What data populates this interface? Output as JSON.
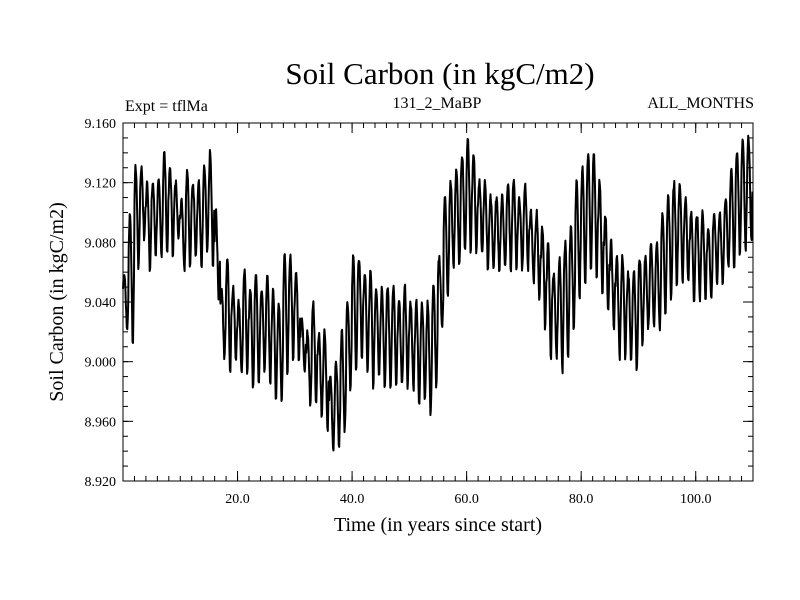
{
  "chart_data": {
    "type": "line",
    "title": "Soil Carbon (in kgC/m2)",
    "subtitle_left": "Expt = tflMa",
    "subtitle_center": "131_2_MaBP",
    "subtitle_right": "ALL_MONTHS",
    "xlabel": "Time (in years since start)",
    "ylabel": "Soil Carbon (in kgC/m2)",
    "xlim": [
      0,
      110
    ],
    "ylim": [
      8.92,
      9.16
    ],
    "x_ticks": [
      20,
      40,
      60,
      80,
      100
    ],
    "x_tick_labels": [
      "20.0",
      "40.0",
      "60.0",
      "80.0",
      "100.0"
    ],
    "y_ticks": [
      8.92,
      8.96,
      9.0,
      9.04,
      9.08,
      9.12,
      9.16
    ],
    "y_tick_labels": [
      "8.920",
      "8.960",
      "9.000",
      "9.040",
      "9.080",
      "9.120",
      "9.160"
    ],
    "x_minor_step": 2,
    "y_minor_step": 0.01,
    "samples_per_year": 12,
    "annual_upper": [
      9.06,
      9.1,
      9.13,
      9.13,
      9.12,
      9.12,
      9.12,
      9.14,
      9.13,
      9.12,
      9.11,
      9.13,
      9.12,
      9.12,
      9.13,
      9.14,
      9.1,
      9.05,
      9.07,
      9.05,
      9.04,
      9.06,
      9.05,
      9.06,
      9.05,
      9.06,
      9.05,
      9.04,
      9.07,
      9.07,
      9.06,
      9.03,
      9.02,
      9.04,
      9.02,
      9.02,
      8.99,
      9.0,
      9.02,
      9.04,
      9.07,
      9.07,
      9.06,
      9.06,
      9.05,
      9.05,
      9.05,
      9.05,
      9.04,
      9.05,
      9.04,
      9.04,
      9.04,
      9.04,
      9.05,
      9.07,
      9.11,
      9.12,
      9.13,
      9.14,
      9.15,
      9.14,
      9.12,
      9.12,
      9.11,
      9.11,
      9.11,
      9.12,
      9.12,
      9.11,
      9.12,
      9.1,
      9.1,
      9.09,
      9.08,
      9.06,
      9.07,
      9.08,
      9.09,
      9.12,
      9.13,
      9.14,
      9.14,
      9.12,
      9.1,
      9.08,
      9.07,
      9.07,
      9.06,
      9.06,
      9.07,
      9.07,
      9.08,
      9.08,
      9.1,
      9.11,
      9.12,
      9.12,
      9.11,
      9.1,
      9.1,
      9.1,
      9.09,
      9.1,
      9.1,
      9.11,
      9.13,
      9.14,
      9.15,
      9.15
    ],
    "annual_lower": [
      9.02,
      9.01,
      9.06,
      9.08,
      9.06,
      9.07,
      9.07,
      9.07,
      9.07,
      9.08,
      9.06,
      9.06,
      9.07,
      9.06,
      9.07,
      9.06,
      9.04,
      9.0,
      8.99,
      9.0,
      8.99,
      8.99,
      8.98,
      8.98,
      8.99,
      8.98,
      8.97,
      8.97,
      8.99,
      9.0,
      9.0,
      8.99,
      8.97,
      8.97,
      8.96,
      8.95,
      8.94,
      8.94,
      8.95,
      8.98,
      8.99,
      9.0,
      8.99,
      8.98,
      8.99,
      8.98,
      8.98,
      8.98,
      8.98,
      8.98,
      8.98,
      8.97,
      8.97,
      8.96,
      8.98,
      9.02,
      9.04,
      9.06,
      9.06,
      9.07,
      9.07,
      9.07,
      9.07,
      9.06,
      9.06,
      9.06,
      9.06,
      9.06,
      9.06,
      9.06,
      9.06,
      9.05,
      9.04,
      9.02,
      9.0,
      9.0,
      8.99,
      9.0,
      9.02,
      9.04,
      9.05,
      9.06,
      9.05,
      9.04,
      9.03,
      9.02,
      9.0,
      9.0,
      9.0,
      8.99,
      9.01,
      9.02,
      9.02,
      9.02,
      9.03,
      9.04,
      9.05,
      9.05,
      9.05,
      9.04,
      9.04,
      9.04,
      9.04,
      9.05,
      9.05,
      9.06,
      9.06,
      9.07,
      9.07,
      9.08
    ]
  }
}
